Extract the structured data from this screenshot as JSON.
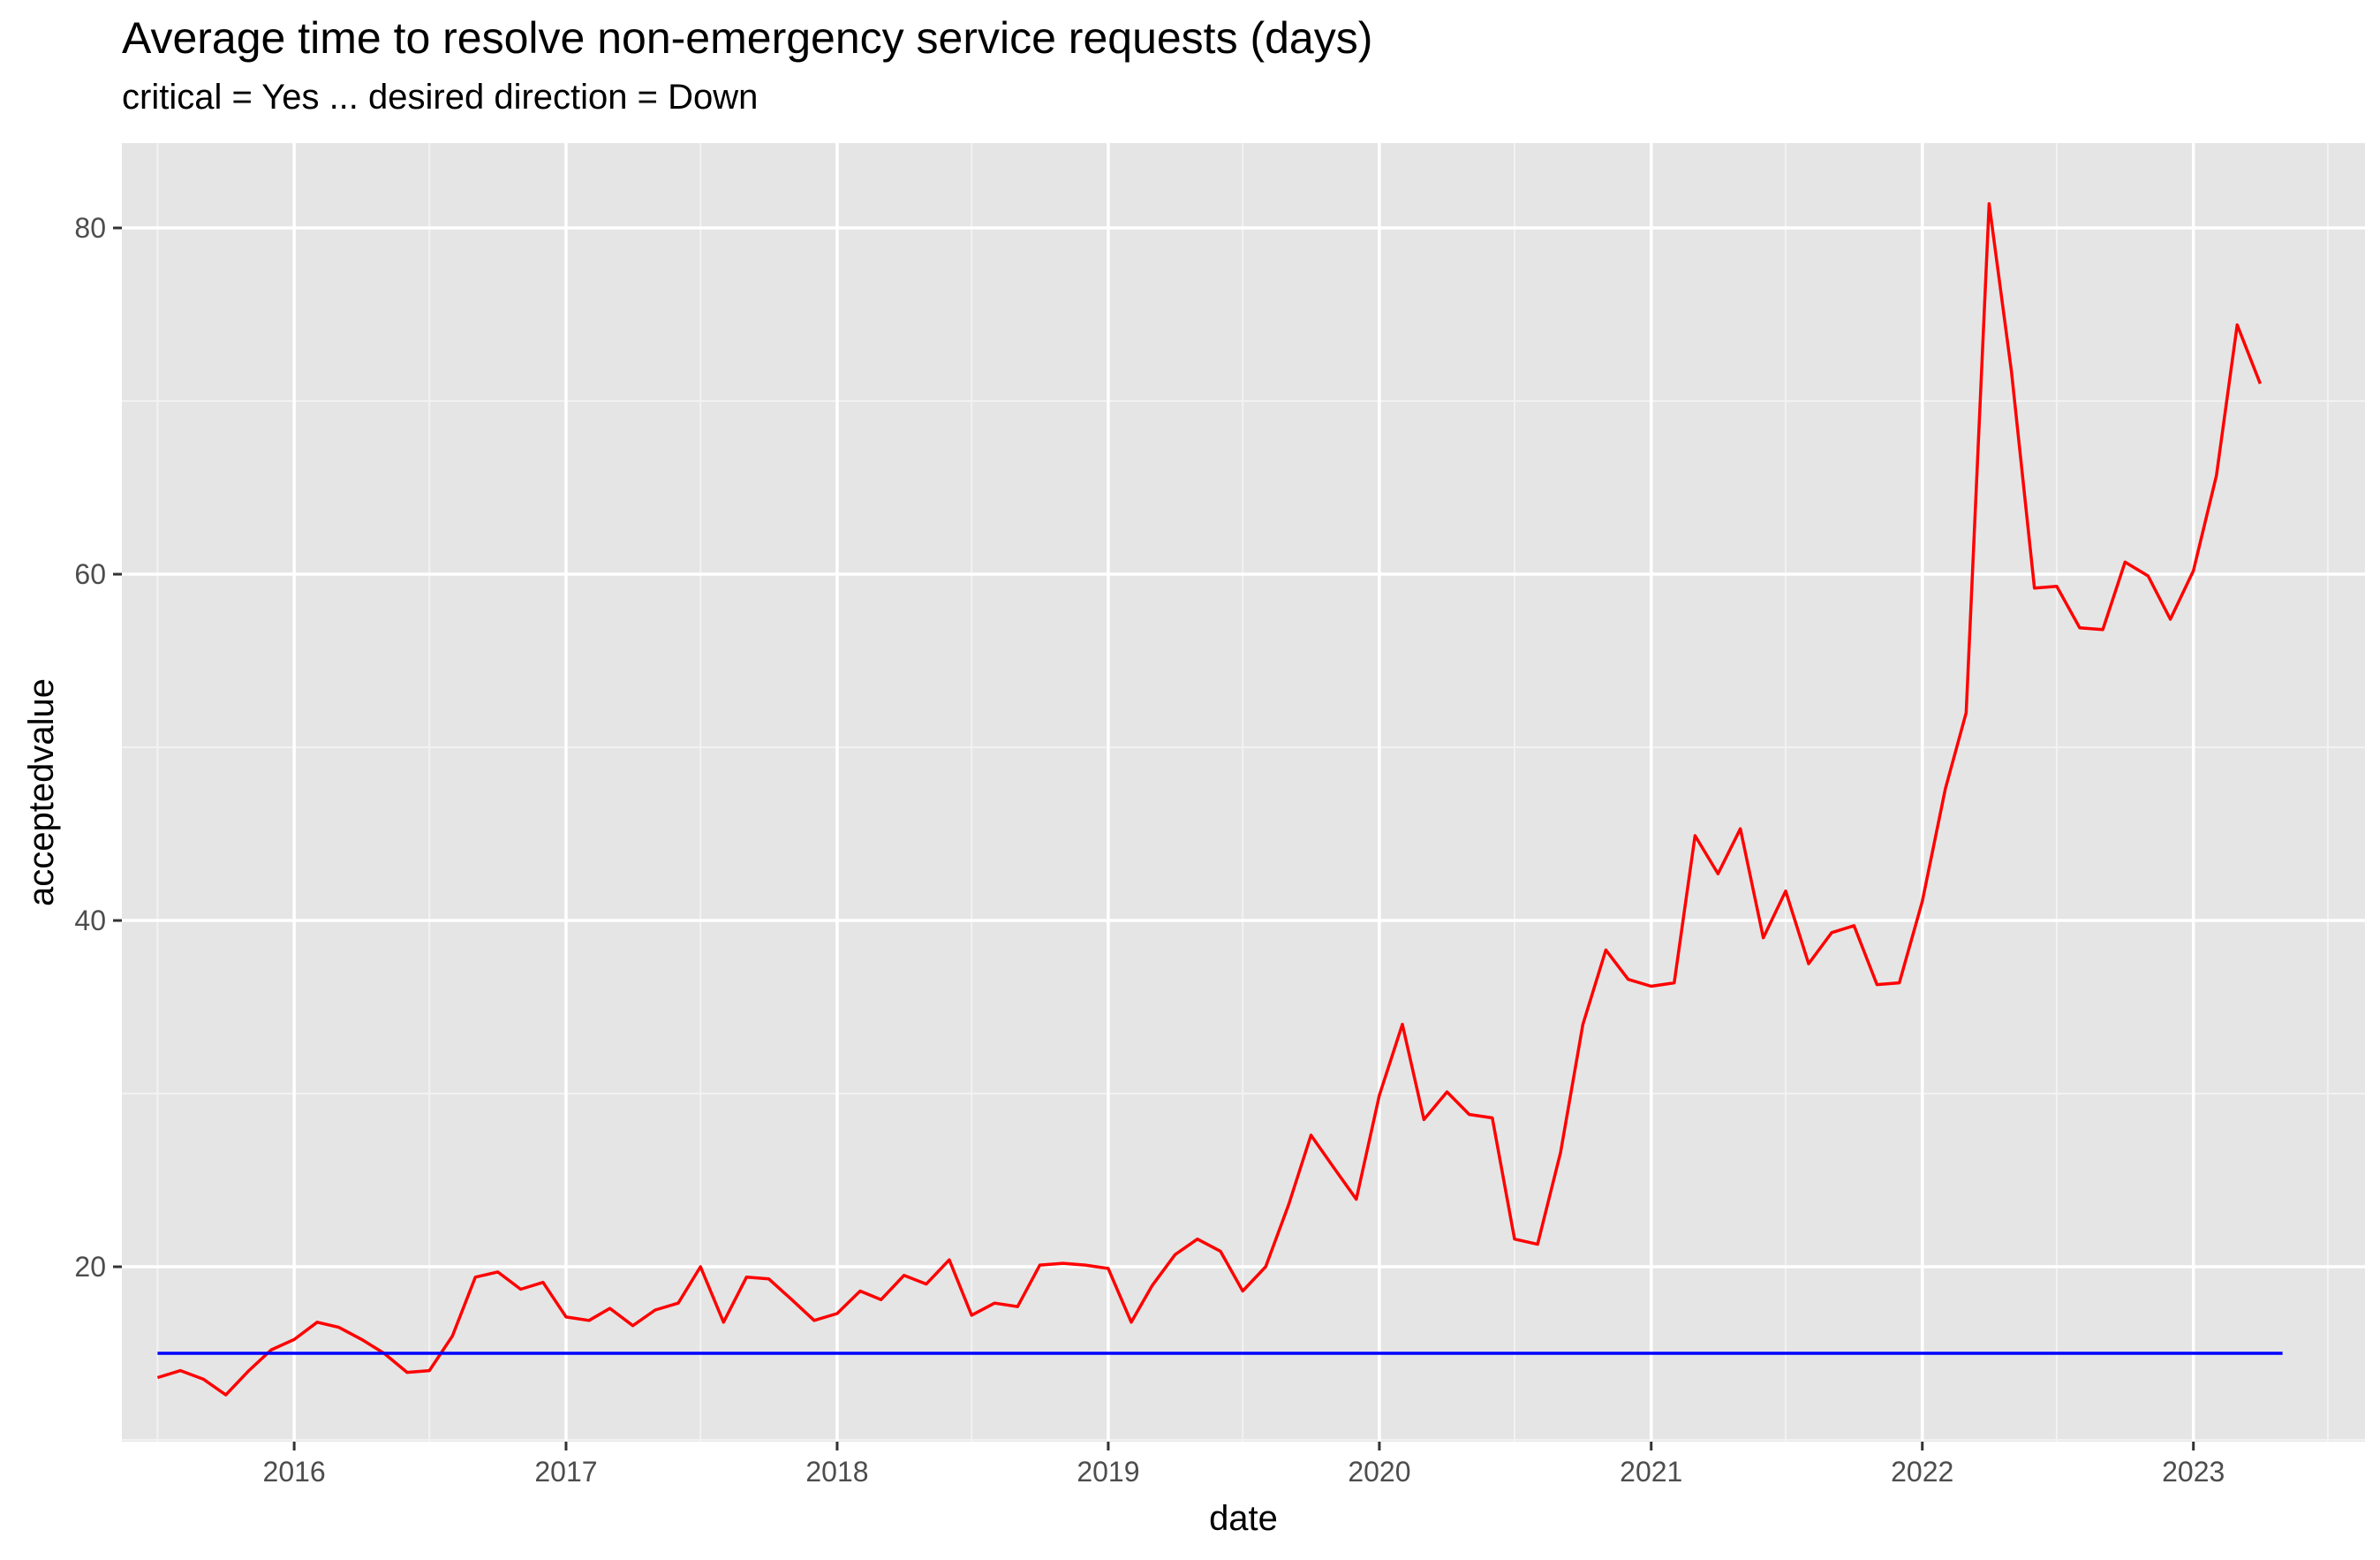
{
  "chart_data": {
    "type": "line",
    "title": "Average time to resolve non-emergency service requests (days)",
    "subtitle": "critical = Yes ... desired direction = Down",
    "xlabel": "date",
    "ylabel": "acceptedvalue",
    "x_ticks": [
      "2016",
      "2017",
      "2018",
      "2019",
      "2020",
      "2021",
      "2022",
      "2023"
    ],
    "y_ticks": [
      20,
      40,
      60,
      80
    ],
    "xlim": [
      "2015-05-14",
      "2023-08-20"
    ],
    "ylim": [
      9.9,
      84.9
    ],
    "grid": true,
    "series": [
      {
        "color": "#ff0000",
        "x": [
          "2015-07-01",
          "2015-08-01",
          "2015-09-01",
          "2015-10-01",
          "2015-11-01",
          "2015-12-01",
          "2016-01-01",
          "2016-02-01",
          "2016-03-01",
          "2016-04-01",
          "2016-05-01",
          "2016-06-01",
          "2016-07-01",
          "2016-08-01",
          "2016-09-01",
          "2016-10-01",
          "2016-11-01",
          "2016-12-01",
          "2017-01-01",
          "2017-02-01",
          "2017-03-01",
          "2017-04-01",
          "2017-05-01",
          "2017-06-01",
          "2017-07-01",
          "2017-08-01",
          "2017-09-01",
          "2017-10-01",
          "2017-11-01",
          "2017-12-01",
          "2018-01-01",
          "2018-02-01",
          "2018-03-01",
          "2018-04-01",
          "2018-05-01",
          "2018-06-01",
          "2018-07-01",
          "2018-08-01",
          "2018-09-01",
          "2018-10-01",
          "2018-11-01",
          "2018-12-01",
          "2019-01-01",
          "2019-02-01",
          "2019-03-01",
          "2019-04-01",
          "2019-05-01",
          "2019-06-01",
          "2019-07-01",
          "2019-08-01",
          "2019-09-01",
          "2019-10-01",
          "2019-11-01",
          "2019-12-01",
          "2020-01-01",
          "2020-02-01",
          "2020-03-01",
          "2020-04-01",
          "2020-05-01",
          "2020-06-01",
          "2020-07-01",
          "2020-08-01",
          "2020-09-01",
          "2020-10-01",
          "2020-11-01",
          "2020-12-01",
          "2021-01-01",
          "2021-02-01",
          "2021-03-01",
          "2021-04-01",
          "2021-05-01",
          "2021-06-01",
          "2021-07-01",
          "2021-08-01",
          "2021-09-01",
          "2021-10-01",
          "2021-11-01",
          "2021-12-01",
          "2022-01-01",
          "2022-02-01",
          "2022-03-01",
          "2022-04-01",
          "2022-05-01",
          "2022-06-01",
          "2022-07-01",
          "2022-08-01",
          "2022-09-01",
          "2022-10-01",
          "2022-11-01",
          "2022-12-01",
          "2023-01-01",
          "2023-02-01",
          "2023-03-01",
          "2023-04-01"
        ],
        "values": [
          13.6,
          14.0,
          13.5,
          12.6,
          14.0,
          15.2,
          15.8,
          16.8,
          16.5,
          15.8,
          15.0,
          13.9,
          14.0,
          16.0,
          19.4,
          19.7,
          18.7,
          19.1,
          17.1,
          16.9,
          17.6,
          16.6,
          17.5,
          17.9,
          20.0,
          16.8,
          19.4,
          19.3,
          18.1,
          16.9,
          17.3,
          18.6,
          18.1,
          19.5,
          19.0,
          20.4,
          17.2,
          17.9,
          17.7,
          20.1,
          20.2,
          20.1,
          19.9,
          16.8,
          18.9,
          20.7,
          21.6,
          20.9,
          18.6,
          20.0,
          23.6,
          27.6,
          25.7,
          23.9,
          29.9,
          34.0,
          28.5,
          30.1,
          28.8,
          28.6,
          21.6,
          21.3,
          26.6,
          34.0,
          38.3,
          36.6,
          36.2,
          36.4,
          44.9,
          42.7,
          45.3,
          39.0,
          41.7,
          37.5,
          39.3,
          39.7,
          36.3,
          36.4,
          41.1,
          47.6,
          52.0,
          81.4,
          71.7,
          59.2,
          59.3,
          56.9,
          56.8,
          60.7,
          59.9,
          57.4,
          60.2,
          65.7,
          74.4,
          71.0
        ]
      },
      {
        "color": "#0000ff",
        "x": [
          "2015-07-01",
          "2023-05-01"
        ],
        "values": [
          15.0,
          15.0
        ]
      }
    ]
  }
}
